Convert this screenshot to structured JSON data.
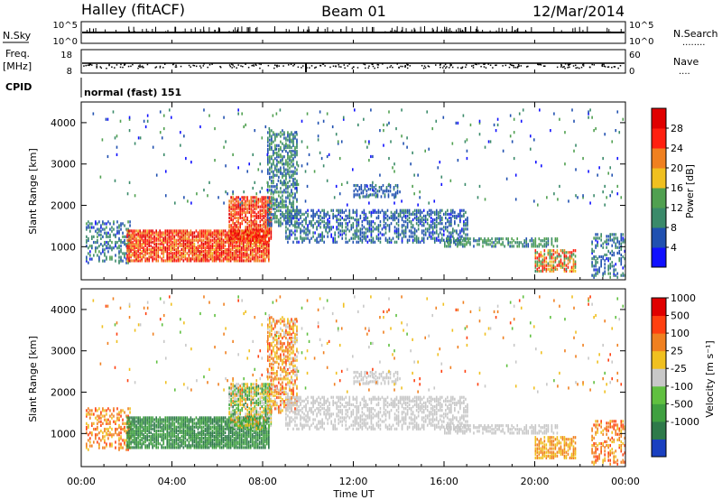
{
  "header": {
    "station": "Halley (fitACF)",
    "beam": "Beam 01",
    "date": "12/Mar/2014"
  },
  "side_labels": {
    "nsky": "N.Sky",
    "freq": "Freq.",
    "freq_unit": "[MHz]",
    "cpid": "CPID",
    "nsearch": "N.Search",
    "nave": "Nave",
    "dotted": "........",
    "dotted_short": "...."
  },
  "strips": {
    "noise_left_ticks": [
      "10^5",
      "10^0"
    ],
    "noise_right_ticks": [
      "10^5",
      "10^0"
    ],
    "freq_left_ticks": [
      "18",
      "8"
    ],
    "nave_right_ticks": [
      "60",
      "0"
    ],
    "cpid_text": "normal (fast) 151"
  },
  "chart_data": [
    {
      "type": "heatmap",
      "name": "Power",
      "ylabel": "Slant Range [km]",
      "ylim": [
        200,
        4500
      ],
      "y_ticks": [
        "4000",
        "3000",
        "2000",
        "1000"
      ],
      "y_tick_values": [
        4000,
        3000,
        2000,
        1000
      ],
      "colorbar": {
        "label": "Power [dB]",
        "ticks": [
          "28",
          "24",
          "20",
          "16",
          "12",
          "8",
          "4"
        ],
        "tick_values": [
          28,
          24,
          20,
          16,
          12,
          8,
          4
        ],
        "range": [
          0,
          32
        ],
        "colors": [
          "#1010ff",
          "#2050b0",
          "#3a8a6a",
          "#50a050",
          "#f0c020",
          "#f08020",
          "#ff2010",
          "#e00000"
        ]
      }
    },
    {
      "type": "heatmap",
      "name": "Velocity",
      "ylabel": "Slant Range [km]",
      "ylim": [
        200,
        4500
      ],
      "y_ticks": [
        "4000",
        "3000",
        "2000",
        "1000"
      ],
      "y_tick_values": [
        4000,
        3000,
        2000,
        1000
      ],
      "colorbar": {
        "label": "Velocity [m s⁻¹]",
        "ticks": [
          "1000",
          "500",
          "100",
          "25",
          "-25",
          "-100",
          "-500",
          "-1000"
        ],
        "colors": [
          "#1a40c0",
          "#2e7a4a",
          "#3fa040",
          "#60c040",
          "#c8c8c8",
          "#f0c020",
          "#f08020",
          "#ff4010",
          "#e00000"
        ]
      }
    }
  ],
  "x_axis": {
    "label": "Time UT",
    "ticks": [
      "00:00",
      "04:00",
      "08:00",
      "12:00",
      "16:00",
      "20:00",
      "00:00"
    ],
    "tick_hours": [
      0,
      4,
      8,
      12,
      16,
      20,
      24
    ],
    "range_hours": [
      0,
      24
    ]
  }
}
